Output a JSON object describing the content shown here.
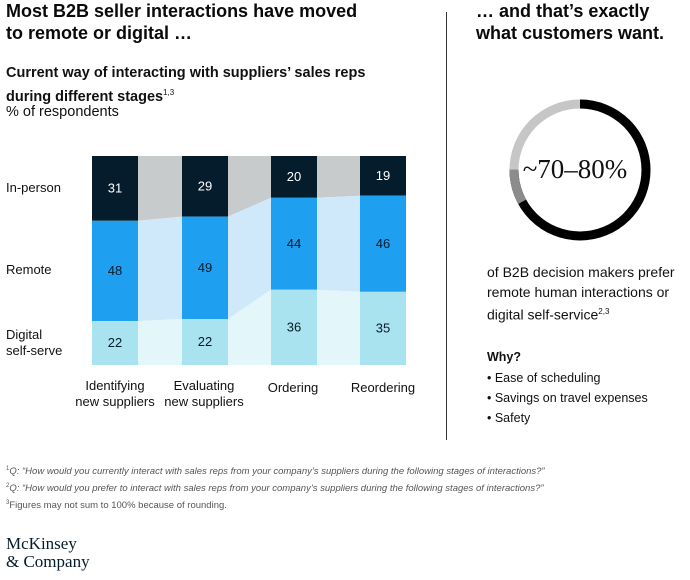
{
  "left": {
    "headline": [
      "Most B2B seller interactions have moved",
      "to remote or digital …"
    ],
    "subtitle": [
      "Current way of interacting with suppliers’ sales reps",
      "during different stages"
    ],
    "subtitle_footnote_marks": "1,3",
    "unit": "% of respondents"
  },
  "right": {
    "headline": [
      "… and that’s exactly",
      "what customers want."
    ],
    "stat": "~70–80%",
    "stat_description": [
      "of B2B decision makers prefer",
      "remote human interactions or",
      "digital self-service"
    ],
    "stat_footnote_marks": "2,3",
    "why_title": "Why?",
    "why_items": [
      "• Ease of scheduling",
      "• Savings on travel expenses",
      "• Safety"
    ]
  },
  "ring": {
    "dark_share": 0.75,
    "light_share": 0.25,
    "dark_color": "#000000",
    "light_color": "#c6c6c6",
    "marker_color": "#8c8c8c"
  },
  "chart_data": {
    "type": "bar",
    "stacked": true,
    "categories": [
      [
        "Identifying",
        "new suppliers"
      ],
      [
        "Evaluating",
        "new suppliers"
      ],
      [
        "Ordering"
      ],
      [
        "Reordering"
      ]
    ],
    "series": [
      {
        "name": "In-person",
        "row_label": [
          "In-person"
        ],
        "values": [
          31,
          29,
          20,
          19
        ],
        "color": "#051c2c",
        "connector_color": "#c8cbcc",
        "label_color": "#ffffff"
      },
      {
        "name": "Remote",
        "row_label": [
          "Remote"
        ],
        "values": [
          48,
          49,
          44,
          46
        ],
        "color": "#1f9ff0",
        "connector_color": "#cfe9fb",
        "label_color": "#0a1a2a"
      },
      {
        "name": "Digital self-serve",
        "row_label": [
          "Digital",
          "self-serve"
        ],
        "values": [
          22,
          22,
          36,
          35
        ],
        "color": "#a8e3ef",
        "connector_color": "#e3f6f9",
        "label_color": "#0a1a2a"
      }
    ],
    "ylim": [
      0,
      100
    ]
  },
  "footnotes": [
    {
      "mark": "1",
      "text": "Q: “How would you currently interact with sales reps from your company’s suppliers during the following stages of interactions?”"
    },
    {
      "mark": "2",
      "text": "Q: “How would you prefer to interact with sales reps from your company’s suppliers during the following stages of interactions?”"
    },
    {
      "mark": "3",
      "text": "Figures may not sum to 100% because of rounding."
    }
  ],
  "logo": [
    "McKinsey",
    "& Company"
  ]
}
